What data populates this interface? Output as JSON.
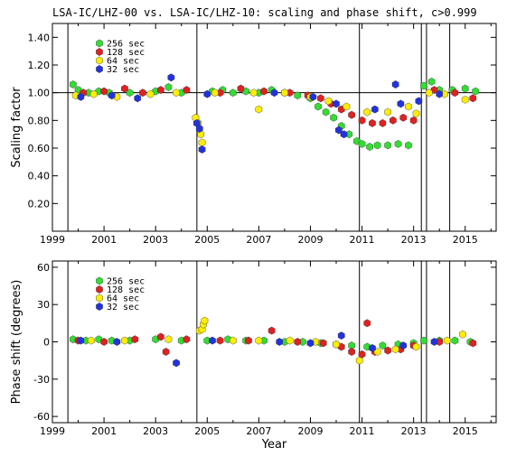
{
  "title": "LSA-IC/LHZ-00 vs. LSA-IC/LHZ-10: scaling and phase shift, c>0.999",
  "colors": {
    "256 sec": "#33dd33",
    "128 sec": "#dd2222",
    "64 sec": "#ffee00",
    "32 sec": "#2233dd"
  },
  "chart_data": [
    {
      "type": "scatter",
      "ylabel": "Scaling factor",
      "xlabel": "",
      "xlim": [
        1999,
        2016.2
      ],
      "ylim": [
        0,
        1.5
      ],
      "x_ticks": [
        "1999",
        "2001",
        "2003",
        "2005",
        "2007",
        "2009",
        "2011",
        "2013",
        "2015"
      ],
      "y_ticks": [
        "0.20",
        "0.40",
        "0.60",
        "0.80",
        "1.00",
        "1.20",
        "1.40"
      ],
      "reference_line": 1.0,
      "event_lines": [
        1999.6,
        2004.6,
        2010.9,
        2013.3,
        2013.5,
        2014.4
      ],
      "legend": [
        "256 sec",
        "128 sec",
        "64 sec",
        "32 sec"
      ],
      "legend_position": "top-left",
      "series": [
        {
          "name": "256 sec",
          "color": "#33dd33",
          "x": [
            1999.8,
            2000.0,
            2000.4,
            2000.8,
            2001.2,
            2002.0,
            2003.0,
            2003.5,
            2004.0,
            2005.2,
            2005.6,
            2006.0,
            2006.5,
            2007.0,
            2007.5,
            2008.0,
            2008.5,
            2009.0,
            2009.3,
            2009.6,
            2009.9,
            2010.2,
            2010.5,
            2010.8,
            2011.0,
            2011.3,
            2011.6,
            2012.0,
            2012.4,
            2012.8,
            2013.4,
            2013.7,
            2014.0,
            2014.5,
            2015.0,
            2015.4
          ],
          "y": [
            1.06,
            1.02,
            1.0,
            1.01,
            1.0,
            1.0,
            1.01,
            1.04,
            1.0,
            1.01,
            1.02,
            1.0,
            1.01,
            1.0,
            1.02,
            1.0,
            0.98,
            0.96,
            0.9,
            0.86,
            0.82,
            0.76,
            0.7,
            0.65,
            0.63,
            0.61,
            0.62,
            0.62,
            0.63,
            0.62,
            1.05,
            1.08,
            1.02,
            1.02,
            1.03,
            1.01
          ]
        },
        {
          "name": "128 sec",
          "color": "#dd2222",
          "x": [
            2000.2,
            2001.0,
            2001.8,
            2002.5,
            2003.2,
            2004.2,
            2005.5,
            2006.3,
            2007.2,
            2008.2,
            2008.9,
            2009.4,
            2009.8,
            2010.2,
            2010.6,
            2011.0,
            2011.4,
            2011.8,
            2012.2,
            2012.6,
            2013.0,
            2013.8,
            2014.6,
            2015.3
          ],
          "y": [
            1.0,
            1.01,
            1.03,
            1.0,
            1.02,
            1.02,
            1.0,
            1.03,
            1.01,
            1.0,
            0.98,
            0.96,
            0.92,
            0.88,
            0.84,
            0.8,
            0.78,
            0.78,
            0.8,
            0.82,
            0.8,
            1.02,
            1.0,
            0.96
          ]
        },
        {
          "name": "64 sec",
          "color": "#ffee00",
          "x": [
            1999.9,
            2000.6,
            2001.5,
            2002.8,
            2003.8,
            2004.55,
            2004.65,
            2004.75,
            2004.8,
            2005.3,
            2006.8,
            2007.0,
            2008.0,
            2009.0,
            2009.7,
            2010.4,
            2011.2,
            2012.0,
            2012.8,
            2013.1,
            2013.6,
            2014.2,
            2015.0
          ],
          "y": [
            0.98,
            0.99,
            0.97,
            0.99,
            1.0,
            0.82,
            0.78,
            0.7,
            0.64,
            1.0,
            1.0,
            0.88,
            1.0,
            0.97,
            0.94,
            0.9,
            0.86,
            0.86,
            0.9,
            0.85,
            1.0,
            0.99,
            0.95
          ]
        },
        {
          "name": "32 sec",
          "color": "#2233dd",
          "x": [
            2000.1,
            2001.3,
            2002.3,
            2003.6,
            2004.6,
            2004.7,
            2004.8,
            2005.0,
            2007.6,
            2009.1,
            2010.0,
            2010.1,
            2010.3,
            2011.5,
            2012.3,
            2012.5,
            2013.2,
            2014.0
          ],
          "y": [
            0.97,
            0.98,
            0.96,
            1.11,
            0.78,
            0.74,
            0.59,
            0.99,
            1.0,
            0.97,
            0.92,
            0.73,
            0.7,
            0.88,
            1.06,
            0.92,
            0.94,
            0.99
          ]
        }
      ]
    },
    {
      "type": "scatter",
      "ylabel": "Phase shift (degrees)",
      "xlabel": "Year",
      "xlim": [
        1999,
        2016.2
      ],
      "ylim": [
        -65,
        65
      ],
      "x_ticks": [
        "1999",
        "2001",
        "2003",
        "2005",
        "2007",
        "2009",
        "2011",
        "2013",
        "2015"
      ],
      "y_ticks": [
        "-60",
        "-30",
        "0",
        "30",
        "60"
      ],
      "event_lines": [
        1999.6,
        2004.6,
        2010.9,
        2013.3,
        2013.5,
        2014.4
      ],
      "legend": [
        "256 sec",
        "128 sec",
        "64 sec",
        "32 sec"
      ],
      "legend_position": "top-left",
      "series": [
        {
          "name": "256 sec",
          "color": "#33dd33",
          "x": [
            1999.8,
            2000.3,
            2000.8,
            2001.3,
            2002.0,
            2003.0,
            2004.0,
            2005.0,
            2005.8,
            2006.5,
            2007.2,
            2008.0,
            2008.7,
            2009.4,
            2010.0,
            2010.6,
            2011.2,
            2011.8,
            2012.4,
            2013.0,
            2013.4,
            2014.0,
            2014.6,
            2015.2
          ],
          "y": [
            2,
            1,
            2,
            1,
            1,
            2,
            1,
            1,
            2,
            1,
            1,
            0,
            0,
            -1,
            -2,
            -3,
            -4,
            -3,
            -2,
            -1,
            1,
            1,
            1,
            0
          ]
        },
        {
          "name": "128 sec",
          "color": "#dd2222",
          "x": [
            2000.0,
            2001.0,
            2002.2,
            2003.2,
            2003.4,
            2004.2,
            2005.5,
            2006.6,
            2007.5,
            2008.5,
            2009.5,
            2010.2,
            2010.6,
            2011.0,
            2011.2,
            2011.5,
            2012.0,
            2012.5,
            2013.0,
            2014.0,
            2015.3
          ],
          "y": [
            1,
            0,
            2,
            4,
            -8,
            2,
            1,
            1,
            9,
            0,
            -1,
            -4,
            -8,
            -10,
            15,
            -8,
            -7,
            -6,
            -3,
            0,
            -1
          ]
        },
        {
          "name": "64 sec",
          "color": "#ffee00",
          "x": [
            2000.5,
            2001.8,
            2003.5,
            2004.7,
            2004.8,
            2004.85,
            2004.9,
            2006.0,
            2007.0,
            2008.2,
            2009.2,
            2010.0,
            2010.9,
            2011.6,
            2012.3,
            2013.1,
            2014.3,
            2014.9
          ],
          "y": [
            1,
            1,
            2,
            9,
            10,
            14,
            17,
            1,
            1,
            1,
            0,
            -2,
            -15,
            -8,
            -6,
            -4,
            1,
            6
          ]
        },
        {
          "name": "32 sec",
          "color": "#2233dd",
          "x": [
            2000.1,
            2001.5,
            2003.8,
            2005.2,
            2007.8,
            2009.0,
            2010.2,
            2011.4,
            2012.6,
            2013.8
          ],
          "y": [
            1,
            0,
            -17,
            1,
            0,
            -1,
            5,
            -5,
            -3,
            0
          ]
        }
      ]
    }
  ]
}
